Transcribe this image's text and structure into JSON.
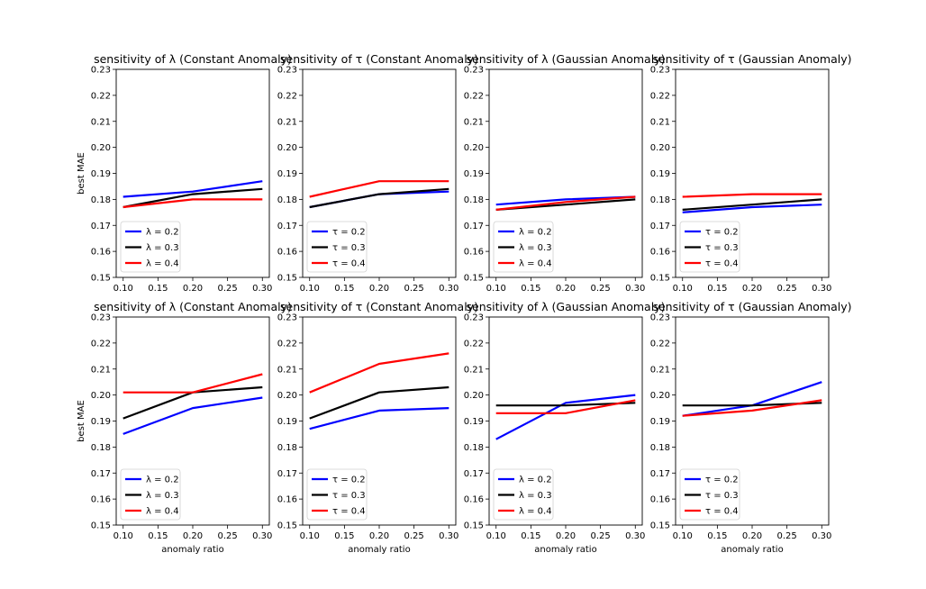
{
  "chart_data": [
    {
      "type": "line",
      "title": "sensitivity of λ (Constant Anomaly)",
      "xlabel": "",
      "ylabel": "best MAE",
      "x": [
        0.1,
        0.2,
        0.3
      ],
      "xticks": [
        "0.10",
        "0.15",
        "0.20",
        "0.25",
        "0.30"
      ],
      "ylim": [
        0.15,
        0.23
      ],
      "yticks": [
        "0.15",
        "0.16",
        "0.17",
        "0.18",
        "0.19",
        "0.20",
        "0.21",
        "0.22",
        "0.23"
      ],
      "legend": "lower-left",
      "series": [
        {
          "name": "λ = 0.2",
          "color": "#0000ff",
          "values": [
            0.181,
            0.183,
            0.187
          ]
        },
        {
          "name": "λ = 0.3",
          "color": "#000000",
          "values": [
            0.177,
            0.182,
            0.184
          ]
        },
        {
          "name": "λ = 0.4",
          "color": "#ff0000",
          "values": [
            0.177,
            0.18,
            0.18
          ]
        }
      ]
    },
    {
      "type": "line",
      "title": "sensitivity of τ (Constant Anomaly)",
      "xlabel": "",
      "ylabel": "",
      "x": [
        0.1,
        0.2,
        0.3
      ],
      "xticks": [
        "0.10",
        "0.15",
        "0.20",
        "0.25",
        "0.30"
      ],
      "ylim": [
        0.15,
        0.23
      ],
      "yticks": [
        "0.15",
        "0.16",
        "0.17",
        "0.18",
        "0.19",
        "0.20",
        "0.21",
        "0.22",
        "0.23"
      ],
      "legend": "lower-left",
      "series": [
        {
          "name": "τ = 0.2",
          "color": "#0000ff",
          "values": [
            0.177,
            0.182,
            0.183
          ]
        },
        {
          "name": "τ = 0.3",
          "color": "#000000",
          "values": [
            0.177,
            0.182,
            0.184
          ]
        },
        {
          "name": "τ = 0.4",
          "color": "#ff0000",
          "values": [
            0.181,
            0.187,
            0.187
          ]
        }
      ]
    },
    {
      "type": "line",
      "title": "sensitivity of λ (Gaussian Anomaly)",
      "xlabel": "",
      "ylabel": "",
      "x": [
        0.1,
        0.2,
        0.3
      ],
      "xticks": [
        "0.10",
        "0.15",
        "0.20",
        "0.25",
        "0.30"
      ],
      "ylim": [
        0.15,
        0.23
      ],
      "yticks": [
        "0.15",
        "0.16",
        "0.17",
        "0.18",
        "0.19",
        "0.20",
        "0.21",
        "0.22",
        "0.23"
      ],
      "legend": "lower-left",
      "series": [
        {
          "name": "λ = 0.2",
          "color": "#0000ff",
          "values": [
            0.178,
            0.18,
            0.181
          ]
        },
        {
          "name": "λ = 0.3",
          "color": "#000000",
          "values": [
            0.176,
            0.178,
            0.18
          ]
        },
        {
          "name": "λ = 0.4",
          "color": "#ff0000",
          "values": [
            0.176,
            0.179,
            0.181
          ]
        }
      ]
    },
    {
      "type": "line",
      "title": "sensitivity of τ (Gaussian Anomaly)",
      "xlabel": "",
      "ylabel": "",
      "x": [
        0.1,
        0.2,
        0.3
      ],
      "xticks": [
        "0.10",
        "0.15",
        "0.20",
        "0.25",
        "0.30"
      ],
      "ylim": [
        0.15,
        0.23
      ],
      "yticks": [
        "0.15",
        "0.16",
        "0.17",
        "0.18",
        "0.19",
        "0.20",
        "0.21",
        "0.22",
        "0.23"
      ],
      "legend": "lower-left",
      "series": [
        {
          "name": "τ = 0.2",
          "color": "#0000ff",
          "values": [
            0.175,
            0.177,
            0.178
          ]
        },
        {
          "name": "τ = 0.3",
          "color": "#000000",
          "values": [
            0.176,
            0.178,
            0.18
          ]
        },
        {
          "name": "τ = 0.4",
          "color": "#ff0000",
          "values": [
            0.181,
            0.182,
            0.182
          ]
        }
      ]
    },
    {
      "type": "line",
      "title": "sensitivity of λ (Constant Anomaly)",
      "xlabel": "anomaly ratio",
      "ylabel": "best MAE",
      "x": [
        0.1,
        0.2,
        0.3
      ],
      "xticks": [
        "0.10",
        "0.15",
        "0.20",
        "0.25",
        "0.30"
      ],
      "ylim": [
        0.15,
        0.23
      ],
      "yticks": [
        "0.15",
        "0.16",
        "0.17",
        "0.18",
        "0.19",
        "0.20",
        "0.21",
        "0.22",
        "0.23"
      ],
      "legend": "lower-left",
      "series": [
        {
          "name": "λ = 0.2",
          "color": "#0000ff",
          "values": [
            0.185,
            0.195,
            0.199
          ]
        },
        {
          "name": "λ = 0.3",
          "color": "#000000",
          "values": [
            0.191,
            0.201,
            0.203
          ]
        },
        {
          "name": "λ = 0.4",
          "color": "#ff0000",
          "values": [
            0.201,
            0.201,
            0.208
          ]
        }
      ]
    },
    {
      "type": "line",
      "title": "sensitivity of τ (Constant Anomaly)",
      "xlabel": "anomaly ratio",
      "ylabel": "",
      "x": [
        0.1,
        0.2,
        0.3
      ],
      "xticks": [
        "0.10",
        "0.15",
        "0.20",
        "0.25",
        "0.30"
      ],
      "ylim": [
        0.15,
        0.23
      ],
      "yticks": [
        "0.15",
        "0.16",
        "0.17",
        "0.18",
        "0.19",
        "0.20",
        "0.21",
        "0.22",
        "0.23"
      ],
      "legend": "lower-left",
      "series": [
        {
          "name": "τ = 0.2",
          "color": "#0000ff",
          "values": [
            0.187,
            0.194,
            0.195
          ]
        },
        {
          "name": "τ = 0.3",
          "color": "#000000",
          "values": [
            0.191,
            0.201,
            0.203
          ]
        },
        {
          "name": "τ = 0.4",
          "color": "#ff0000",
          "values": [
            0.201,
            0.212,
            0.216
          ]
        }
      ]
    },
    {
      "type": "line",
      "title": "sensitivity of λ (Gaussian Anomaly)",
      "xlabel": "anomaly ratio",
      "ylabel": "",
      "x": [
        0.1,
        0.2,
        0.3
      ],
      "xticks": [
        "0.10",
        "0.15",
        "0.20",
        "0.25",
        "0.30"
      ],
      "ylim": [
        0.15,
        0.23
      ],
      "yticks": [
        "0.15",
        "0.16",
        "0.17",
        "0.18",
        "0.19",
        "0.20",
        "0.21",
        "0.22",
        "0.23"
      ],
      "legend": "lower-left",
      "series": [
        {
          "name": "λ = 0.2",
          "color": "#0000ff",
          "values": [
            0.183,
            0.197,
            0.2
          ]
        },
        {
          "name": "λ = 0.3",
          "color": "#000000",
          "values": [
            0.196,
            0.196,
            0.197
          ]
        },
        {
          "name": "λ = 0.4",
          "color": "#ff0000",
          "values": [
            0.193,
            0.193,
            0.198
          ]
        }
      ]
    },
    {
      "type": "line",
      "title": "sensitivity of τ (Gaussian Anomaly)",
      "xlabel": "anomaly ratio",
      "ylabel": "",
      "x": [
        0.1,
        0.2,
        0.3
      ],
      "xticks": [
        "0.10",
        "0.15",
        "0.20",
        "0.25",
        "0.30"
      ],
      "ylim": [
        0.15,
        0.23
      ],
      "yticks": [
        "0.15",
        "0.16",
        "0.17",
        "0.18",
        "0.19",
        "0.20",
        "0.21",
        "0.22",
        "0.23"
      ],
      "legend": "lower-left",
      "series": [
        {
          "name": "τ = 0.2",
          "color": "#0000ff",
          "values": [
            0.192,
            0.196,
            0.205
          ]
        },
        {
          "name": "τ = 0.3",
          "color": "#000000",
          "values": [
            0.196,
            0.196,
            0.197
          ]
        },
        {
          "name": "τ = 0.4",
          "color": "#ff0000",
          "values": [
            0.192,
            0.194,
            0.198
          ]
        }
      ]
    }
  ]
}
